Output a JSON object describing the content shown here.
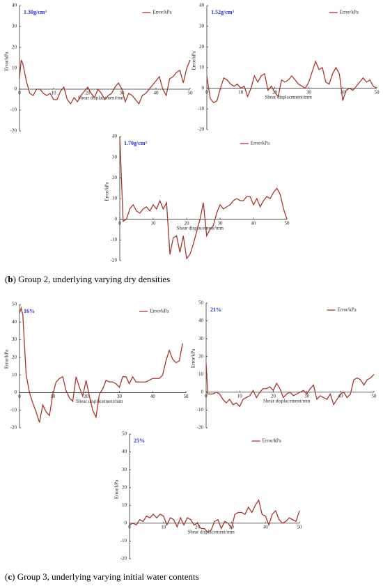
{
  "chart_data": [
    {
      "type": "line",
      "annotation": "1.30g/cm³",
      "xlabel": "Shear displacement/mm",
      "ylabel": "Error/kPa",
      "legend": "upper right",
      "x": [
        0,
        0.5,
        1,
        2,
        3,
        4,
        5,
        6,
        7,
        8,
        9,
        10,
        11,
        12,
        13,
        14,
        15,
        16,
        17,
        18,
        19,
        20,
        21,
        22,
        23,
        24,
        25,
        26,
        27,
        28,
        29,
        30,
        31,
        32,
        33,
        34,
        35,
        36,
        37,
        38,
        39,
        40,
        41,
        42,
        43,
        44,
        45,
        46,
        47,
        48,
        49,
        50
      ],
      "series": [
        {
          "name": "Error/kPa",
          "color": "#a3382b",
          "values": [
            5,
            14,
            12,
            4,
            -2,
            -3,
            0,
            0,
            -2,
            -3,
            -2,
            -5,
            -5,
            -1,
            1,
            -5,
            -7,
            -4,
            -6,
            -3,
            -1,
            1,
            -2,
            -4,
            0,
            -2,
            -5,
            -3,
            -2,
            1,
            3,
            0,
            -6,
            -2,
            -3,
            -5,
            -7,
            -3,
            -2,
            0,
            2,
            4,
            6,
            0,
            -3,
            5,
            6,
            8,
            9,
            3,
            10,
            14
          ]
        }
      ],
      "xlim": [
        0,
        50
      ],
      "ylim": [
        -20,
        40
      ],
      "xticks": [
        0,
        10,
        20,
        30,
        40,
        50
      ],
      "yticks": [
        -20,
        -10,
        0,
        10,
        20,
        30,
        40
      ]
    },
    {
      "type": "line",
      "annotation": "1.52g/cm³",
      "xlabel": "Shear displacement/mm",
      "ylabel": "Error/kPa",
      "legend": "upper right",
      "x": [
        0,
        1,
        2,
        3,
        4,
        5,
        6,
        7,
        8,
        9,
        10,
        11,
        12,
        13,
        14,
        15,
        16,
        17,
        18,
        19,
        20,
        21,
        22,
        23,
        24,
        25,
        26,
        27,
        28,
        29,
        30,
        31,
        32,
        33,
        34,
        35,
        36,
        37,
        38,
        39,
        40,
        41,
        42,
        43,
        44,
        45,
        46,
        47,
        48,
        49,
        50
      ],
      "series": [
        {
          "name": "Error/kPa",
          "color": "#a3382b",
          "values": [
            6,
            -5,
            -7,
            -6,
            0,
            5,
            4,
            2,
            1,
            2,
            0,
            1,
            -4,
            0,
            6,
            3,
            6,
            7,
            -1,
            1,
            -2,
            -4,
            4,
            3,
            4,
            6,
            4,
            2,
            1,
            0,
            3,
            8,
            13,
            9,
            10,
            3,
            2,
            7,
            10,
            7,
            -6,
            -1,
            0,
            -1,
            1,
            3,
            5,
            3,
            4,
            1,
            0
          ]
        }
      ],
      "xlim": [
        0,
        50
      ],
      "ylim": [
        -20,
        40
      ],
      "xticks": [
        0,
        10,
        20,
        30,
        40,
        50
      ],
      "yticks": [
        -20,
        -10,
        0,
        10,
        20,
        30,
        40
      ]
    },
    {
      "type": "line",
      "annotation": "1.70g/cm³",
      "xlabel": "Shear displacement/mm",
      "ylabel": "Error/kPa",
      "legend": "upper right",
      "x": [
        0,
        1,
        2,
        3,
        4,
        5,
        6,
        7,
        8,
        9,
        10,
        11,
        12,
        13,
        14,
        15,
        16,
        17,
        18,
        19,
        20,
        21,
        22,
        23,
        24,
        25,
        26,
        27,
        28,
        29,
        30,
        31,
        32,
        33,
        34,
        35,
        36,
        37,
        38,
        39,
        40,
        41,
        42,
        43,
        44,
        45,
        46,
        47,
        48,
        49,
        50
      ],
      "series": [
        {
          "name": "Error/kPa",
          "color": "#a3382b",
          "values": [
            40,
            -1,
            0,
            5,
            7,
            4,
            3,
            5,
            6,
            4,
            7,
            5,
            9,
            5,
            8,
            -17,
            -9,
            -8,
            -16,
            -8,
            -19,
            -17,
            -12,
            -6,
            0,
            8,
            -8,
            -5,
            -3,
            3,
            7,
            5,
            6,
            7,
            9,
            10,
            9,
            9,
            11,
            11,
            7,
            10,
            6,
            9,
            11,
            10,
            13,
            15,
            12,
            5,
            0
          ]
        }
      ],
      "xlim": [
        0,
        50
      ],
      "ylim": [
        -20,
        40
      ],
      "xticks": [
        0,
        10,
        20,
        30,
        40,
        50
      ],
      "yticks": [
        -20,
        -10,
        0,
        10,
        20,
        30,
        40
      ]
    },
    {
      "type": "line",
      "annotation": "16%",
      "xlabel": "Shear displacement/mm",
      "ylabel": "Error/kPa",
      "legend": "upper right",
      "x": [
        0,
        0.5,
        1,
        2,
        3,
        4,
        5,
        6,
        7,
        8,
        9,
        10,
        11,
        12,
        13,
        14,
        15,
        16,
        17,
        18,
        19,
        20,
        21,
        22,
        23,
        24,
        25,
        26,
        27,
        28,
        29,
        30,
        31,
        32,
        33,
        34,
        35,
        36,
        37,
        38,
        39,
        40,
        41,
        42,
        43,
        44,
        45,
        46,
        47,
        48,
        49
      ],
      "series": [
        {
          "name": "Error/kPa",
          "color": "#a3382b",
          "values": [
            45,
            48,
            44,
            10,
            0,
            -6,
            -11,
            -17,
            -7,
            -11,
            -13,
            -1,
            6,
            8,
            9,
            1,
            -3,
            -5,
            9,
            3,
            -2,
            7,
            -2,
            -10,
            -14,
            -1,
            2,
            7,
            6,
            6,
            5,
            3,
            9,
            9,
            5,
            9,
            6,
            6,
            6,
            6,
            7,
            8,
            8,
            8,
            10,
            18,
            24,
            19,
            17,
            18,
            28
          ]
        }
      ],
      "xlim": [
        0,
        50
      ],
      "ylim": [
        -20,
        50
      ],
      "xticks": [
        0,
        10,
        20,
        30,
        40,
        50
      ],
      "yticks": [
        -20,
        -10,
        0,
        10,
        20,
        30,
        40,
        50
      ]
    },
    {
      "type": "line",
      "annotation": "21%",
      "xlabel": "Shear displacement/mm",
      "ylabel": "Error/kPa",
      "legend": "upper right",
      "x": [
        0,
        0.5,
        1,
        2,
        3,
        4,
        5,
        6,
        7,
        8,
        9,
        10,
        11,
        12,
        13,
        14,
        15,
        16,
        17,
        18,
        19,
        20,
        21,
        22,
        23,
        24,
        25,
        26,
        27,
        28,
        29,
        30,
        31,
        32,
        33,
        34,
        35,
        36,
        37,
        38,
        39,
        40,
        41,
        42,
        43,
        44,
        45,
        46,
        47,
        48,
        49,
        50
      ],
      "series": [
        {
          "name": "Error/kPa",
          "color": "#a3382b",
          "values": [
            16,
            -1,
            -1,
            -1,
            0,
            -1,
            -4,
            -6,
            -4,
            -7,
            -6,
            -8,
            -4,
            -3,
            -2,
            1,
            -3,
            0,
            2,
            2,
            3,
            1,
            5,
            2,
            -3,
            -1,
            0,
            -2,
            -1,
            0,
            1,
            -1,
            2,
            4,
            -4,
            -2,
            -3,
            -4,
            -1,
            -7,
            -4,
            -1,
            0,
            -3,
            -1,
            7,
            8,
            7,
            4,
            7,
            8,
            10
          ]
        }
      ],
      "xlim": [
        0,
        50
      ],
      "ylim": [
        -20,
        50
      ],
      "xticks": [
        0,
        10,
        20,
        30,
        40,
        50
      ],
      "yticks": [
        -20,
        -10,
        0,
        10,
        20,
        30,
        40,
        50
      ]
    },
    {
      "type": "line",
      "annotation": "25%",
      "xlabel": "Shear displacement/mm",
      "ylabel": "Error/kPa",
      "legend": "upper right",
      "x": [
        0,
        1,
        2,
        3,
        4,
        5,
        6,
        7,
        8,
        9,
        10,
        11,
        12,
        13,
        14,
        15,
        16,
        17,
        18,
        19,
        20,
        21,
        22,
        23,
        24,
        25,
        26,
        27,
        28,
        29,
        30,
        31,
        32,
        33,
        34,
        35,
        36,
        37,
        38,
        39,
        40,
        41,
        42,
        43,
        44,
        45,
        46,
        47,
        48,
        49,
        50
      ],
      "series": [
        {
          "name": "Error/kPa",
          "color": "#a3382b",
          "values": [
            -1,
            0,
            -1,
            2,
            1,
            4,
            3,
            5,
            3,
            5,
            4,
            -1,
            3,
            2,
            -2,
            3,
            -1,
            3,
            2,
            -1,
            0,
            -3,
            -3,
            -5,
            -4,
            1,
            2,
            -3,
            1,
            0,
            -3,
            5,
            6,
            6,
            5,
            9,
            6,
            10,
            13,
            5,
            4,
            -1,
            5,
            7,
            2,
            0,
            1,
            3,
            2,
            1,
            7
          ]
        }
      ],
      "xlim": [
        0,
        50
      ],
      "ylim": [
        -20,
        50
      ],
      "xticks": [
        0,
        10,
        20,
        30,
        40,
        50
      ],
      "yticks": [
        -20,
        -10,
        0,
        10,
        20,
        30,
        40,
        50
      ]
    }
  ],
  "captions": [
    [
      "(",
      "b",
      ") Group 2, underlying varying dry densities"
    ],
    [
      "(",
      "c",
      ") Group 3, underlying varying initial water contents"
    ]
  ]
}
